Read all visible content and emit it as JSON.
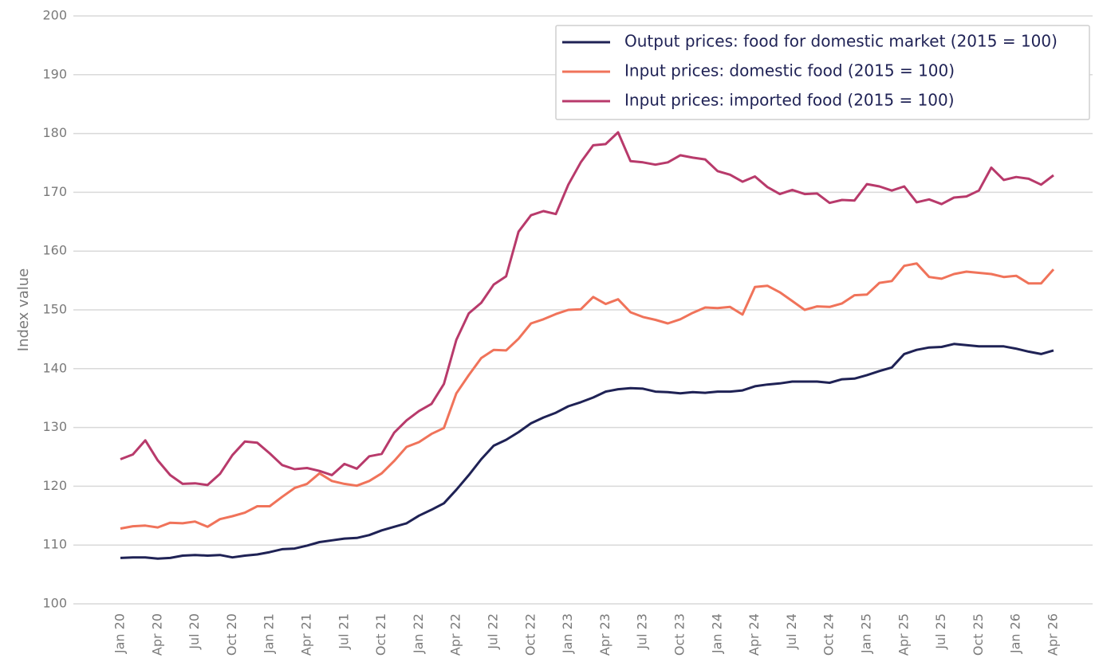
{
  "chart_data": {
    "type": "line",
    "y_label": "Index value",
    "categories": [
      "Jan 20",
      null,
      null,
      "Apr 20",
      null,
      null,
      "Jul 20",
      null,
      null,
      "Oct 20",
      null,
      null,
      "Jan 21",
      null,
      null,
      "Apr 21",
      null,
      null,
      "Jul 21",
      null,
      null,
      "Oct 21",
      null,
      null,
      "Jan 22",
      null,
      null,
      "Apr 22",
      null,
      null,
      "Jul 22",
      null,
      null,
      "Oct 22",
      null,
      null,
      "Jan 23",
      null,
      null,
      "Apr 23",
      null,
      null,
      "Jul 23",
      null,
      null,
      "Oct 23",
      null,
      null,
      "Jan 24",
      null,
      null,
      "Apr 24",
      null,
      null,
      "Jul 24",
      null,
      null,
      "Oct 24",
      null,
      null,
      "Jan 25",
      null,
      null,
      "Apr 25",
      null,
      null,
      "Jul 25",
      null,
      null,
      "Oct 25",
      null,
      null,
      "Jan 26",
      null,
      null,
      "Apr 26"
    ],
    "series": [
      {
        "name": "Output prices: food for domestic market (2015 = 100)",
        "color": "#1f2255",
        "values": [
          107.8,
          107.9,
          107.9,
          107.7,
          107.8,
          108.2,
          108.3,
          108.2,
          108.3,
          107.9,
          108.2,
          108.4,
          108.8,
          109.3,
          109.4,
          109.9,
          110.5,
          110.8,
          111.1,
          111.2,
          111.7,
          112.5,
          113.1,
          113.7,
          115.0,
          116.0,
          117.1,
          119.4,
          121.9,
          124.6,
          126.9,
          127.9,
          129.2,
          130.7,
          131.7,
          132.5,
          133.6,
          134.3,
          135.1,
          136.1,
          136.5,
          136.7,
          136.6,
          136.1,
          136.0,
          135.8,
          136.0,
          135.9,
          136.1,
          136.1,
          136.3,
          137.0,
          137.3,
          137.5,
          137.8,
          137.8,
          137.8,
          137.6,
          138.2,
          138.3,
          138.9,
          139.6,
          140.2,
          142.5,
          143.2,
          143.6,
          143.7,
          144.2,
          144.0,
          143.8,
          143.8,
          143.8,
          143.4,
          142.9,
          142.5,
          143.1
        ]
      },
      {
        "name": "Input prices: domestic food (2015 = 100)",
        "color": "#f0735a",
        "values": [
          112.8,
          113.2,
          113.3,
          113.0,
          113.8,
          113.7,
          114.0,
          113.1,
          114.4,
          114.9,
          115.5,
          116.6,
          116.6,
          118.2,
          119.7,
          120.4,
          122.2,
          120.9,
          120.4,
          120.1,
          120.9,
          122.2,
          124.3,
          126.7,
          127.5,
          128.9,
          129.9,
          135.8,
          138.9,
          141.8,
          143.2,
          143.1,
          145.1,
          147.7,
          148.4,
          149.3,
          150.0,
          150.1,
          152.2,
          151.0,
          151.8,
          149.6,
          148.8,
          148.3,
          147.7,
          148.4,
          149.5,
          150.4,
          150.3,
          150.5,
          149.2,
          153.9,
          154.1,
          153.0,
          151.5,
          150.0,
          150.6,
          150.5,
          151.1,
          152.5,
          152.6,
          154.6,
          154.9,
          157.5,
          157.9,
          155.6,
          155.3,
          156.1,
          156.5,
          156.3,
          156.1,
          155.6,
          155.8,
          154.5,
          154.5,
          156.9
        ]
      },
      {
        "name": "Input prices: imported food (2015 = 100)",
        "color": "#b83a6b",
        "values": [
          124.6,
          125.4,
          127.8,
          124.4,
          121.9,
          120.4,
          120.5,
          120.2,
          122.1,
          125.3,
          127.6,
          127.4,
          125.6,
          123.6,
          122.9,
          123.1,
          122.6,
          121.9,
          123.8,
          123.0,
          125.1,
          125.5,
          129.1,
          131.2,
          132.8,
          134.0,
          137.4,
          144.9,
          149.4,
          151.2,
          154.3,
          155.7,
          163.3,
          166.1,
          166.8,
          166.3,
          171.3,
          175.1,
          178.0,
          178.2,
          180.2,
          175.3,
          175.1,
          174.7,
          175.1,
          176.3,
          175.9,
          175.6,
          173.6,
          173.0,
          171.8,
          172.7,
          170.9,
          169.7,
          170.4,
          169.7,
          169.8,
          168.2,
          168.7,
          168.6,
          171.4,
          171.0,
          170.3,
          171.0,
          168.3,
          168.8,
          168.0,
          169.1,
          169.3,
          170.3,
          174.2,
          172.1,
          172.6,
          172.3,
          171.3,
          172.9
        ]
      }
    ],
    "ylim": [
      100,
      200
    ],
    "yticks": [
      100,
      110,
      120,
      130,
      140,
      150,
      160,
      170,
      180,
      190,
      200
    ],
    "grid": true,
    "legend": "top-right"
  }
}
